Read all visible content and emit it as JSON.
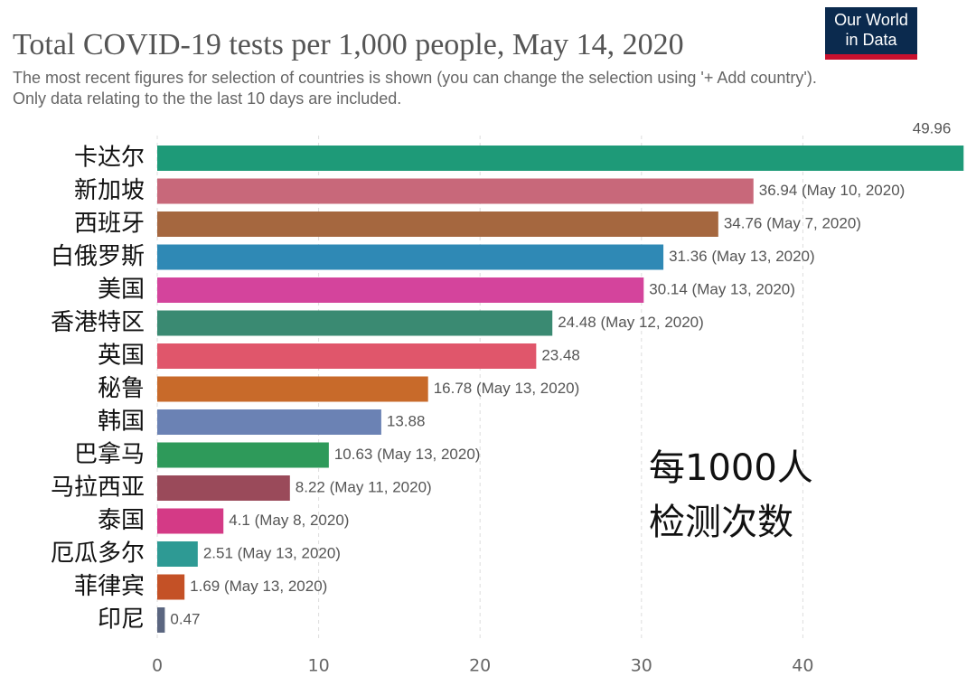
{
  "chart_data": {
    "type": "bar",
    "orientation": "horizontal",
    "title": "Total COVID-19 tests per 1,000 people, May 14, 2020",
    "subtitle": [
      "The most recent figures for selection of countries is shown (you can change the selection using '+ Add country').",
      "Only data relating to the the last 10 days are included."
    ],
    "logo": [
      "Our World",
      "in Data"
    ],
    "annotation": [
      "每1000人",
      "检测次数"
    ],
    "categories": [
      "卡达尔",
      "新加坡",
      "西班牙",
      "白俄罗斯",
      "美国",
      "香港特区",
      "英国",
      "秘鲁",
      "韩国",
      "巴拿马",
      "马拉西亚",
      "泰国",
      "厄瓜多尔",
      "菲律宾",
      "印尼"
    ],
    "values": [
      49.96,
      36.94,
      34.76,
      31.36,
      30.14,
      24.48,
      23.48,
      16.78,
      13.88,
      10.63,
      8.22,
      4.1,
      2.51,
      1.69,
      0.47
    ],
    "value_labels": [
      "49.96",
      "36.94 (May 10, 2020)",
      "34.76 (May 7, 2020)",
      "31.36 (May 13, 2020)",
      "30.14 (May 13, 2020)",
      "24.48 (May 12, 2020)",
      "23.48",
      "16.78 (May 13, 2020)",
      "13.88",
      "10.63 (May 13, 2020)",
      "8.22 (May 11, 2020)",
      "4.1 (May 8, 2020)",
      "2.51 (May 13, 2020)",
      "1.69 (May 13, 2020)",
      "0.47"
    ],
    "colors": [
      "#1e9a78",
      "#c8687a",
      "#a5673f",
      "#2f89b5",
      "#d4449c",
      "#3a8a72",
      "#e0566b",
      "#c86a2a",
      "#6b82b4",
      "#2e9a5a",
      "#9a4a5a",
      "#d43a86",
      "#2e9a94",
      "#c45126",
      "#5b6680"
    ],
    "xlim": [
      0,
      50
    ],
    "xticks": [
      0,
      10,
      20,
      30,
      40
    ],
    "grid": true
  }
}
